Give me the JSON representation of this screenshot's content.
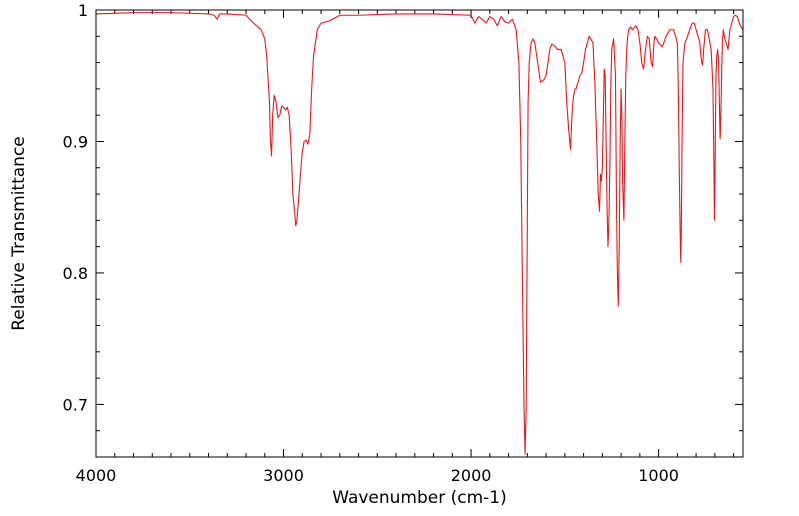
{
  "chart_data": {
    "type": "line",
    "title": "",
    "xlabel": "Wavenumber (cm-1)",
    "ylabel": "Relative Transmittance",
    "xlim": [
      4000,
      550
    ],
    "ylim": [
      0.66,
      1.0
    ],
    "x_reversed": true,
    "x_ticks": [
      4000,
      3000,
      2000,
      1000
    ],
    "x_tick_labels": [
      "4000",
      "3000",
      "2000",
      "1000"
    ],
    "y_ticks": [
      0.7,
      0.8,
      0.9,
      1.0
    ],
    "y_tick_labels": [
      "0.7",
      "0.8",
      "0.9",
      "1"
    ],
    "grid": false,
    "legend": "none",
    "series": [
      {
        "color": "#e31a1c",
        "x": [
          4000,
          3800,
          3600,
          3400,
          3370,
          3355,
          3340,
          3300,
          3200,
          3160,
          3120,
          3100,
          3090,
          3075,
          3070,
          3064,
          3058,
          3050,
          3040,
          3030,
          3020,
          3010,
          3000,
          2990,
          2980,
          2970,
          2960,
          2950,
          2940,
          2935,
          2930,
          2920,
          2910,
          2900,
          2890,
          2880,
          2870,
          2860,
          2850,
          2840,
          2820,
          2800,
          2750,
          2700,
          2600,
          2400,
          2200,
          2000,
          1980,
          1960,
          1940,
          1920,
          1900,
          1880,
          1860,
          1840,
          1820,
          1800,
          1780,
          1760,
          1745,
          1735,
          1725,
          1718,
          1712,
          1706,
          1700,
          1696,
          1690,
          1680,
          1670,
          1660,
          1645,
          1630,
          1612,
          1600,
          1590,
          1580,
          1570,
          1555,
          1540,
          1520,
          1500,
          1490,
          1480,
          1470,
          1460,
          1453,
          1446,
          1440,
          1430,
          1420,
          1410,
          1400,
          1390,
          1370,
          1350,
          1340,
          1330,
          1322,
          1315,
          1310,
          1305,
          1300,
          1296,
          1290,
          1285,
          1280,
          1275,
          1270,
          1265,
          1260,
          1255,
          1250,
          1240,
          1230,
          1225,
          1220,
          1215,
          1210,
          1205,
          1200,
          1196,
          1192,
          1185,
          1180,
          1175,
          1170,
          1165,
          1160,
          1150,
          1140,
          1120,
          1110,
          1100,
          1090,
          1080,
          1070,
          1060,
          1050,
          1040,
          1032,
          1025,
          1020,
          1010,
          1000,
          980,
          960,
          940,
          920,
          900,
          895,
          890,
          885,
          882,
          879,
          875,
          870,
          860,
          850,
          830,
          820,
          810,
          800,
          790,
          780,
          775,
          770,
          765,
          760,
          750,
          740,
          730,
          720,
          710,
          705,
          702,
          700,
          697,
          694,
          690,
          685,
          680,
          676,
          672,
          668,
          664,
          660,
          655,
          650,
          640,
          630,
          620,
          610,
          600,
          590,
          580,
          570,
          560,
          550
        ],
        "values": [
          0.997,
          0.998,
          0.998,
          0.997,
          0.996,
          0.993,
          0.997,
          0.997,
          0.996,
          0.99,
          0.985,
          0.978,
          0.965,
          0.93,
          0.9,
          0.889,
          0.92,
          0.935,
          0.93,
          0.918,
          0.92,
          0.927,
          0.926,
          0.924,
          0.926,
          0.92,
          0.895,
          0.86,
          0.845,
          0.836,
          0.838,
          0.855,
          0.875,
          0.892,
          0.9,
          0.901,
          0.898,
          0.905,
          0.94,
          0.965,
          0.985,
          0.99,
          0.992,
          0.996,
          0.996,
          0.997,
          0.997,
          0.996,
          0.99,
          0.995,
          0.993,
          0.99,
          0.995,
          0.993,
          0.988,
          0.995,
          0.991,
          0.99,
          0.993,
          0.985,
          0.96,
          0.9,
          0.78,
          0.7,
          0.662,
          0.7,
          0.84,
          0.93,
          0.96,
          0.975,
          0.978,
          0.975,
          0.96,
          0.945,
          0.947,
          0.95,
          0.96,
          0.97,
          0.974,
          0.973,
          0.97,
          0.97,
          0.96,
          0.93,
          0.91,
          0.894,
          0.925,
          0.935,
          0.94,
          0.94,
          0.945,
          0.95,
          0.952,
          0.96,
          0.97,
          0.98,
          0.975,
          0.945,
          0.9,
          0.86,
          0.847,
          0.875,
          0.87,
          0.88,
          0.91,
          0.955,
          0.95,
          0.9,
          0.85,
          0.82,
          0.84,
          0.88,
          0.94,
          0.97,
          0.978,
          0.95,
          0.86,
          0.8,
          0.775,
          0.82,
          0.9,
          0.94,
          0.92,
          0.87,
          0.84,
          0.9,
          0.95,
          0.97,
          0.98,
          0.985,
          0.987,
          0.985,
          0.988,
          0.985,
          0.975,
          0.96,
          0.955,
          0.97,
          0.98,
          0.978,
          0.96,
          0.957,
          0.975,
          0.98,
          0.978,
          0.975,
          0.972,
          0.98,
          0.985,
          0.985,
          0.975,
          0.94,
          0.88,
          0.83,
          0.808,
          0.83,
          0.9,
          0.96,
          0.975,
          0.978,
          0.987,
          0.99,
          0.99,
          0.985,
          0.98,
          0.975,
          0.966,
          0.96,
          0.958,
          0.97,
          0.985,
          0.985,
          0.978,
          0.97,
          0.94,
          0.88,
          0.84,
          0.86,
          0.91,
          0.95,
          0.965,
          0.97,
          0.96,
          0.93,
          0.902,
          0.92,
          0.95,
          0.975,
          0.985,
          0.98,
          0.975,
          0.97,
          0.985,
          0.99,
          0.995,
          0.996,
          0.995,
          0.99,
          0.987,
          0.985
        ]
      }
    ]
  }
}
